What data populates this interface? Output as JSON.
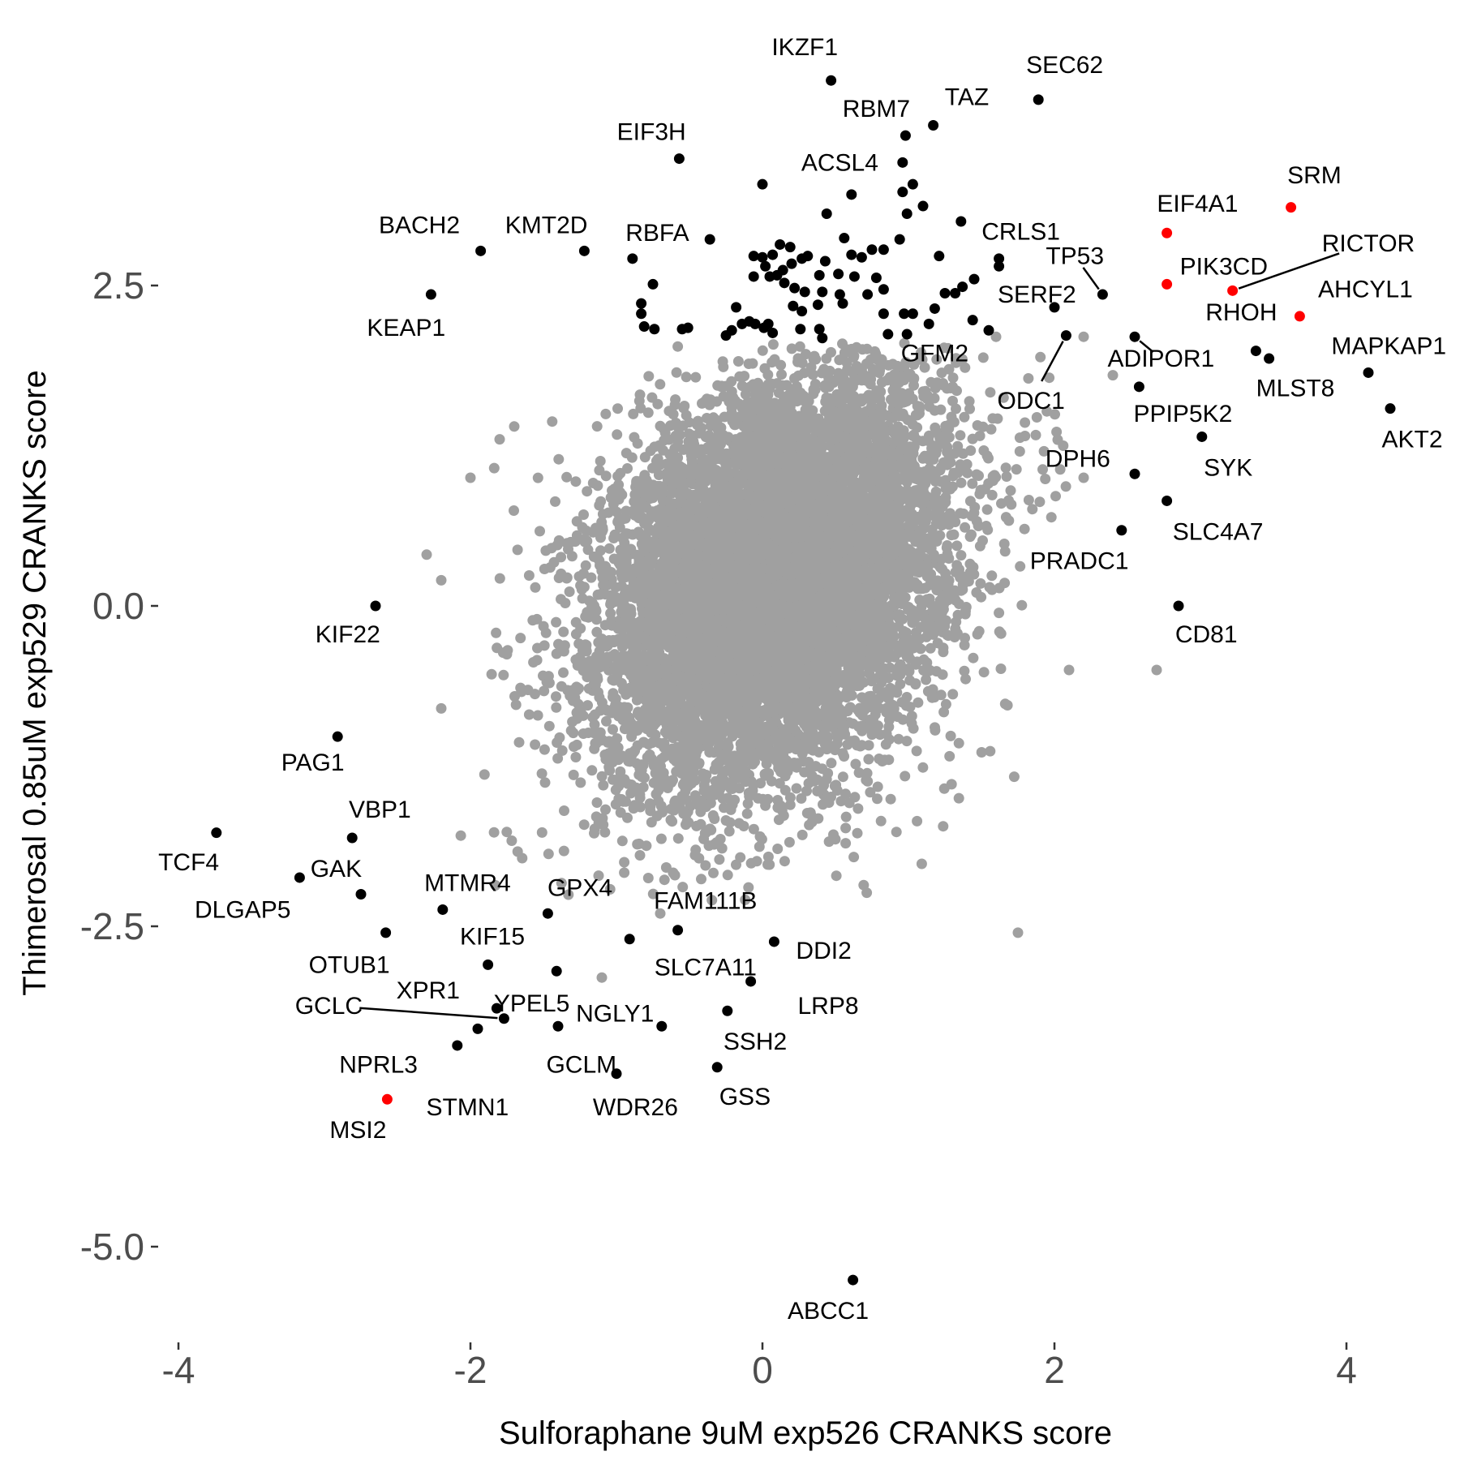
{
  "chart_data": {
    "type": "scatter",
    "title": "",
    "xlabel": "Sulforaphane 9uM exp526 CRANKS score",
    "ylabel": "Thimerosal 0.85uM exp529 CRANKS score",
    "xlim": [
      -4.0,
      4.55
    ],
    "ylim": [
      -5.75,
      4.65
    ],
    "xticks": [
      -4,
      -2,
      0,
      2,
      4
    ],
    "yticks": [
      2.5,
      0.0,
      -2.5,
      -5.0
    ],
    "xtick_labels": [
      "-4",
      "-2",
      "0",
      "2",
      "4"
    ],
    "ytick_labels": [
      "2.5",
      "0.0",
      "-2.5",
      "-5.0"
    ],
    "grid": false,
    "background_cloud": {
      "description_free": true,
      "color": "#a0a0a0",
      "n_points": 9000,
      "center": [
        0.1,
        0.2
      ],
      "sd": [
        0.6,
        0.8
      ],
      "correlation": 0.3,
      "outliers": [
        [
          -2.0,
          1.0
        ],
        [
          -1.8,
          1.3
        ],
        [
          -1.7,
          1.4
        ],
        [
          -2.3,
          0.4
        ],
        [
          -2.2,
          0.2
        ],
        [
          2.2,
          1.0
        ],
        [
          2.1,
          -0.5
        ],
        [
          2.7,
          -0.5
        ],
        [
          1.75,
          -2.55
        ],
        [
          -1.1,
          -2.9
        ],
        [
          1.7,
          0.9
        ],
        [
          -0.7,
          -2.4
        ],
        [
          1.6,
          2.1
        ],
        [
          2.2,
          2.1
        ],
        [
          -2.2,
          -0.8
        ],
        [
          2.4,
          1.8
        ]
      ]
    },
    "series": [
      {
        "name": "labeled_black",
        "color": "#000000",
        "points": [
          {
            "label": "IKZF1",
            "x": 0.47,
            "y": 4.1,
            "tx": 0.29,
            "ty": 4.36
          },
          {
            "label": "SEC62",
            "x": 1.89,
            "y": 3.95,
            "tx": 2.07,
            "ty": 4.22
          },
          {
            "label": "TAZ",
            "x": 1.17,
            "y": 3.75,
            "tx": 1.4,
            "ty": 3.97
          },
          {
            "label": "RBM7",
            "x": 0.98,
            "y": 3.67,
            "tx": 0.78,
            "ty": 3.88
          },
          {
            "label": "EIF3H",
            "x": -0.57,
            "y": 3.49,
            "tx": -0.76,
            "ty": 3.7
          },
          {
            "label": "ACSL4",
            "x": 0.96,
            "y": 3.46,
            "tx": 0.53,
            "ty": 3.46
          },
          {
            "label": "BACH2",
            "x": -1.93,
            "y": 2.77,
            "tx": -2.35,
            "ty": 2.97
          },
          {
            "label": "KMT2D",
            "x": -1.22,
            "y": 2.77,
            "tx": -1.48,
            "ty": 2.97
          },
          {
            "label": "RBFA",
            "x": -0.89,
            "y": 2.71,
            "tx": -0.72,
            "ty": 2.91
          },
          {
            "label": "CRLS1",
            "x": 1.62,
            "y": 2.71,
            "tx": 1.77,
            "ty": 2.92
          },
          {
            "label": "TP53",
            "x": 2.33,
            "y": 2.43,
            "tx": 2.14,
            "ty": 2.73,
            "leader": true
          },
          {
            "label": "KEAP1",
            "x": -2.27,
            "y": 2.43,
            "tx": -2.44,
            "ty": 2.17
          },
          {
            "label": "SERF2",
            "x": 2.0,
            "y": 2.33,
            "tx": 1.88,
            "ty": 2.43
          },
          {
            "label": "ADIPOR1",
            "x": 2.55,
            "y": 2.1,
            "tx": 2.73,
            "ty": 1.93,
            "leader": true
          },
          {
            "label": "GFM2",
            "x": 1.55,
            "y": 2.15,
            "tx": 1.18,
            "ty": 1.97
          },
          {
            "label": "ODC1",
            "x": 2.08,
            "y": 2.11,
            "tx": 1.84,
            "ty": 1.6,
            "leader": true
          },
          {
            "label": "PPIP5K2",
            "x": 2.58,
            "y": 1.71,
            "tx": 2.88,
            "ty": 1.5
          },
          {
            "label": "SYK",
            "x": 3.01,
            "y": 1.32,
            "tx": 3.19,
            "ty": 1.08
          },
          {
            "label": "DPH6",
            "x": 2.55,
            "y": 1.03,
            "tx": 2.16,
            "ty": 1.15
          },
          {
            "label": "SLC4A7",
            "x": 2.77,
            "y": 0.82,
            "tx": 3.12,
            "ty": 0.58
          },
          {
            "label": "PRADC1",
            "x": 2.46,
            "y": 0.59,
            "tx": 2.17,
            "ty": 0.35
          },
          {
            "label": "CD81",
            "x": 2.85,
            "y": 0.0,
            "tx": 3.04,
            "ty": -0.22
          },
          {
            "label": "MAPKAP1",
            "x": 4.15,
            "y": 1.82,
            "tx": 4.29,
            "ty": 2.03
          },
          {
            "label": "MLST8",
            "x": 3.47,
            "y": 1.93,
            "tx": 3.65,
            "ty": 1.7
          },
          {
            "label": "AKT2",
            "x": 4.3,
            "y": 1.54,
            "tx": 4.45,
            "ty": 1.3
          },
          {
            "label": "RHOH",
            "x": 3.38,
            "y": 1.99,
            "tx": 3.28,
            "ty": 2.29
          },
          {
            "label": "KIF22",
            "x": -2.65,
            "y": 0.0,
            "tx": -2.84,
            "ty": -0.22
          },
          {
            "label": "PAG1",
            "x": -2.91,
            "y": -1.02,
            "tx": -3.08,
            "ty": -1.22
          },
          {
            "label": "VBP1",
            "x": -2.81,
            "y": -1.81,
            "tx": -2.62,
            "ty": -1.59
          },
          {
            "label": "TCF4",
            "x": -3.74,
            "y": -1.77,
            "tx": -3.93,
            "ty": -2.0
          },
          {
            "label": "GAK",
            "x": -2.75,
            "y": -2.25,
            "tx": -2.92,
            "ty": -2.05
          },
          {
            "label": "DLGAP5",
            "x": -3.17,
            "y": -2.12,
            "tx": -3.56,
            "ty": -2.37
          },
          {
            "label": "MTMR4",
            "x": -2.19,
            "y": -2.37,
            "tx": -2.02,
            "ty": -2.16
          },
          {
            "label": "GPX4",
            "x": -1.47,
            "y": -2.4,
            "tx": -1.25,
            "ty": -2.2
          },
          {
            "label": "FAM111B",
            "x": -0.58,
            "y": -2.53,
            "tx": -0.39,
            "ty": -2.3
          },
          {
            "label": "OTUB1",
            "x": -2.58,
            "y": -2.55,
            "tx": -2.83,
            "ty": -2.8
          },
          {
            "label": "KIF15",
            "x": -1.88,
            "y": -2.8,
            "tx": -1.85,
            "ty": -2.58
          },
          {
            "label": "SLC7A11",
            "x": -0.91,
            "y": -2.6,
            "tx": -0.39,
            "ty": -2.82
          },
          {
            "label": "DDI2",
            "x": 0.08,
            "y": -2.62,
            "tx": 0.42,
            "ty": -2.69
          },
          {
            "label": "XPR1",
            "x": -1.41,
            "y": -2.85,
            "tx": -2.29,
            "ty": -3.0
          },
          {
            "label": "LRP8",
            "x": -0.08,
            "y": -2.93,
            "tx": 0.45,
            "ty": -3.12
          },
          {
            "label": "YPEL5",
            "x": -1.82,
            "y": -3.14,
            "tx": -1.58,
            "ty": -3.1
          },
          {
            "label": "NGLY1",
            "x": -0.69,
            "y": -3.28,
            "tx": -1.01,
            "ty": -3.18
          },
          {
            "label": "SSH2",
            "x": -0.24,
            "y": -3.16,
            "tx": -0.05,
            "ty": -3.4
          },
          {
            "label": "GCLC",
            "x": -1.77,
            "y": -3.22,
            "tx": -2.97,
            "ty": -3.12,
            "leader": true
          },
          {
            "label": "NPRL3",
            "x": -1.95,
            "y": -3.3,
            "tx": -2.63,
            "ty": -3.58
          },
          {
            "label": "GCLM",
            "x": -1.4,
            "y": -3.28,
            "tx": -1.24,
            "ty": -3.58
          },
          {
            "label": "WDR26",
            "x": -1.0,
            "y": -3.65,
            "tx": -0.87,
            "ty": -3.91
          },
          {
            "label": "GSS",
            "x": -0.31,
            "y": -3.6,
            "tx": -0.12,
            "ty": -3.83
          },
          {
            "label": "STMN1",
            "x": -2.09,
            "y": -3.43,
            "tx": -2.02,
            "ty": -3.91
          },
          {
            "label": "ABCC1",
            "x": 0.62,
            "y": -5.26,
            "tx": 0.45,
            "ty": -5.5
          }
        ]
      },
      {
        "name": "labeled_red",
        "color": "#ff0000",
        "points": [
          {
            "label": "SRM",
            "x": 3.62,
            "y": 3.11,
            "tx": 3.78,
            "ty": 3.36
          },
          {
            "label": "EIF4A1",
            "x": 2.77,
            "y": 2.91,
            "tx": 2.98,
            "ty": 3.14
          },
          {
            "label": "PIK3CD",
            "x": 2.77,
            "y": 2.51,
            "tx": 3.16,
            "ty": 2.65
          },
          {
            "label": "RICTOR",
            "x": 3.22,
            "y": 2.46,
            "tx": 4.15,
            "ty": 2.83,
            "leader": true
          },
          {
            "label": "AHCYL1",
            "x": 3.68,
            "y": 2.26,
            "tx": 4.13,
            "ty": 2.47
          },
          {
            "label": "MSI2",
            "x": -2.57,
            "y": -3.85,
            "tx": -2.77,
            "ty": -4.09
          }
        ]
      }
    ],
    "unlabeled_black": [
      [
        0.0,
        3.29
      ],
      [
        0.96,
        3.23
      ],
      [
        1.03,
        3.29
      ],
      [
        1.1,
        3.12
      ],
      [
        0.99,
        3.06
      ],
      [
        0.44,
        3.06
      ],
      [
        0.61,
        3.21
      ],
      [
        1.36,
        3.0
      ],
      [
        0.56,
        2.87
      ],
      [
        0.83,
        2.78
      ],
      [
        0.94,
        2.86
      ],
      [
        1.21,
        2.73
      ],
      [
        0.61,
        2.74
      ],
      [
        0.68,
        2.72
      ],
      [
        0.75,
        2.78
      ],
      [
        0.31,
        2.73
      ],
      [
        0.27,
        2.71
      ],
      [
        0.43,
        2.69
      ],
      [
        0.12,
        2.82
      ],
      [
        0.19,
        2.8
      ],
      [
        0.0,
        2.72
      ],
      [
        0.02,
        2.65
      ],
      [
        0.39,
        2.58
      ],
      [
        0.52,
        2.59
      ],
      [
        0.63,
        2.57
      ],
      [
        0.78,
        2.56
      ],
      [
        0.22,
        2.48
      ],
      [
        0.29,
        2.45
      ],
      [
        0.15,
        2.52
      ],
      [
        0.41,
        2.45
      ],
      [
        0.53,
        2.43
      ],
      [
        0.83,
        2.47
      ],
      [
        0.72,
        2.43
      ],
      [
        1.25,
        2.44
      ],
      [
        1.32,
        2.44
      ],
      [
        1.37,
        2.49
      ],
      [
        1.45,
        2.55
      ],
      [
        1.62,
        2.65
      ],
      [
        0.1,
        2.58
      ],
      [
        0.27,
        2.3
      ],
      [
        0.38,
        2.35
      ],
      [
        0.21,
        2.34
      ],
      [
        0.55,
        2.36
      ],
      [
        0.83,
        2.28
      ],
      [
        0.97,
        2.28
      ],
      [
        1.03,
        2.28
      ],
      [
        1.18,
        2.32
      ],
      [
        1.14,
        2.2
      ],
      [
        1.44,
        2.23
      ],
      [
        0.99,
        2.12
      ],
      [
        0.86,
        2.12
      ],
      [
        0.41,
        2.09
      ],
      [
        0.39,
        2.16
      ],
      [
        0.26,
        2.16
      ],
      [
        0.07,
        2.13
      ],
      [
        0.04,
        2.2
      ],
      [
        0.01,
        2.17
      ],
      [
        -0.05,
        2.2
      ],
      [
        -0.09,
        2.22
      ],
      [
        -0.14,
        2.2
      ],
      [
        -0.21,
        2.15
      ],
      [
        -0.25,
        2.11
      ],
      [
        -0.18,
        2.33
      ],
      [
        -0.51,
        2.17
      ],
      [
        -0.55,
        2.16
      ],
      [
        -0.81,
        2.18
      ],
      [
        -0.74,
        2.16
      ],
      [
        -0.83,
        2.36
      ],
      [
        -0.75,
        2.51
      ],
      [
        -0.83,
        2.28
      ],
      [
        -0.36,
        2.86
      ],
      [
        -0.06,
        2.73
      ],
      [
        -0.06,
        2.57
      ],
      [
        0.07,
        2.74
      ],
      [
        0.14,
        2.62
      ],
      [
        0.2,
        2.67
      ],
      [
        0.05,
        2.57
      ]
    ]
  }
}
